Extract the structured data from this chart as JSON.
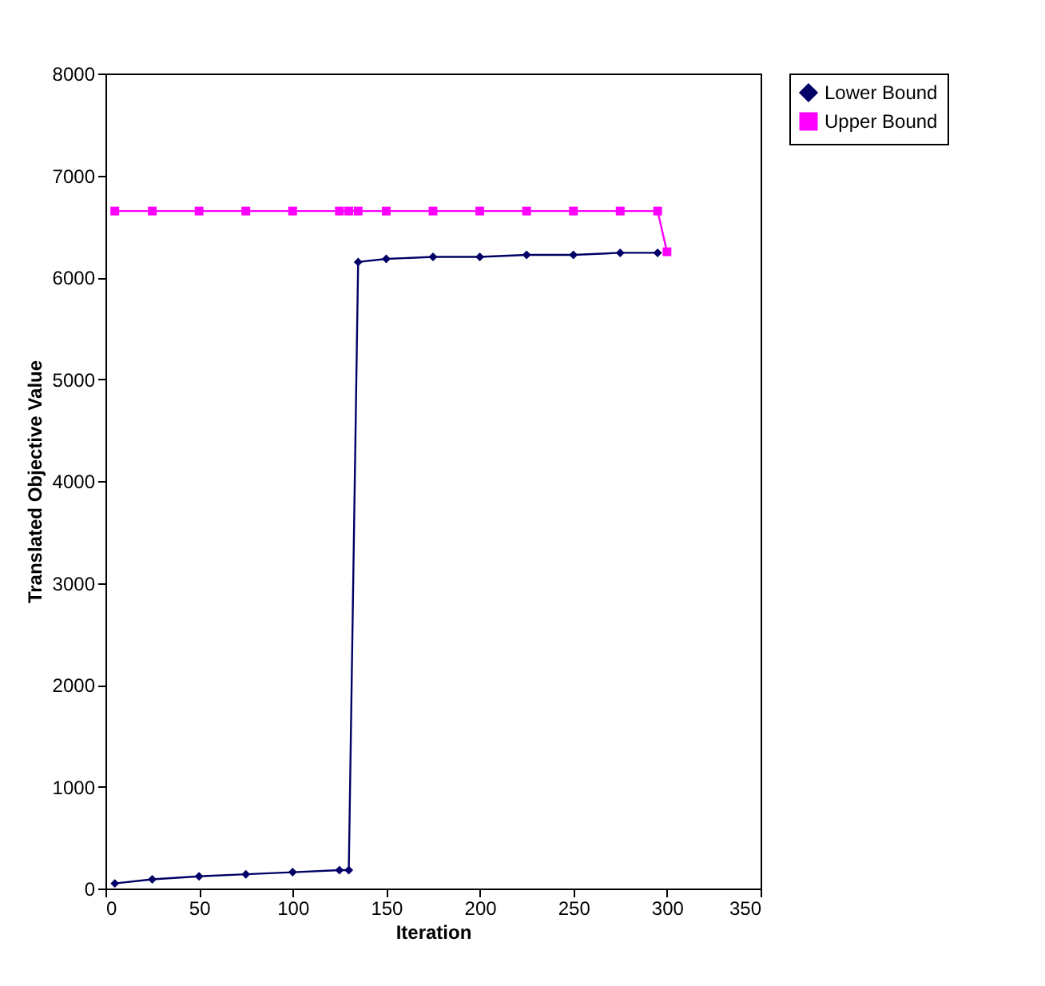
{
  "chart_data": {
    "type": "line",
    "xlabel": "Iteration",
    "ylabel": "Translated Objective Value",
    "xlim": [
      0,
      350
    ],
    "xticks": [
      0,
      50,
      100,
      150,
      200,
      250,
      300,
      350
    ],
    "ylim": [
      0,
      8000
    ],
    "yticks": [
      0,
      1000,
      2000,
      3000,
      4000,
      5000,
      6000,
      7000,
      8000
    ],
    "grid": false,
    "legend": "right",
    "series": [
      {
        "name": "Lower Bound",
        "color": "#000066",
        "marker": "diamond",
        "x": [
          5,
          25,
          50,
          75,
          100,
          125,
          130,
          135,
          150,
          175,
          200,
          225,
          250,
          275,
          295
        ],
        "values": [
          50,
          90,
          120,
          140,
          160,
          180,
          180,
          6150,
          6180,
          6200,
          6200,
          6220,
          6220,
          6240,
          6240
        ]
      },
      {
        "name": "Upper Bound",
        "color": "#ff00ff",
        "marker": "square",
        "x": [
          5,
          25,
          50,
          75,
          100,
          125,
          130,
          135,
          150,
          175,
          200,
          225,
          250,
          275,
          295,
          300
        ],
        "values": [
          6650,
          6650,
          6650,
          6650,
          6650,
          6650,
          6650,
          6650,
          6650,
          6650,
          6650,
          6650,
          6650,
          6650,
          6650,
          6250
        ]
      }
    ]
  }
}
